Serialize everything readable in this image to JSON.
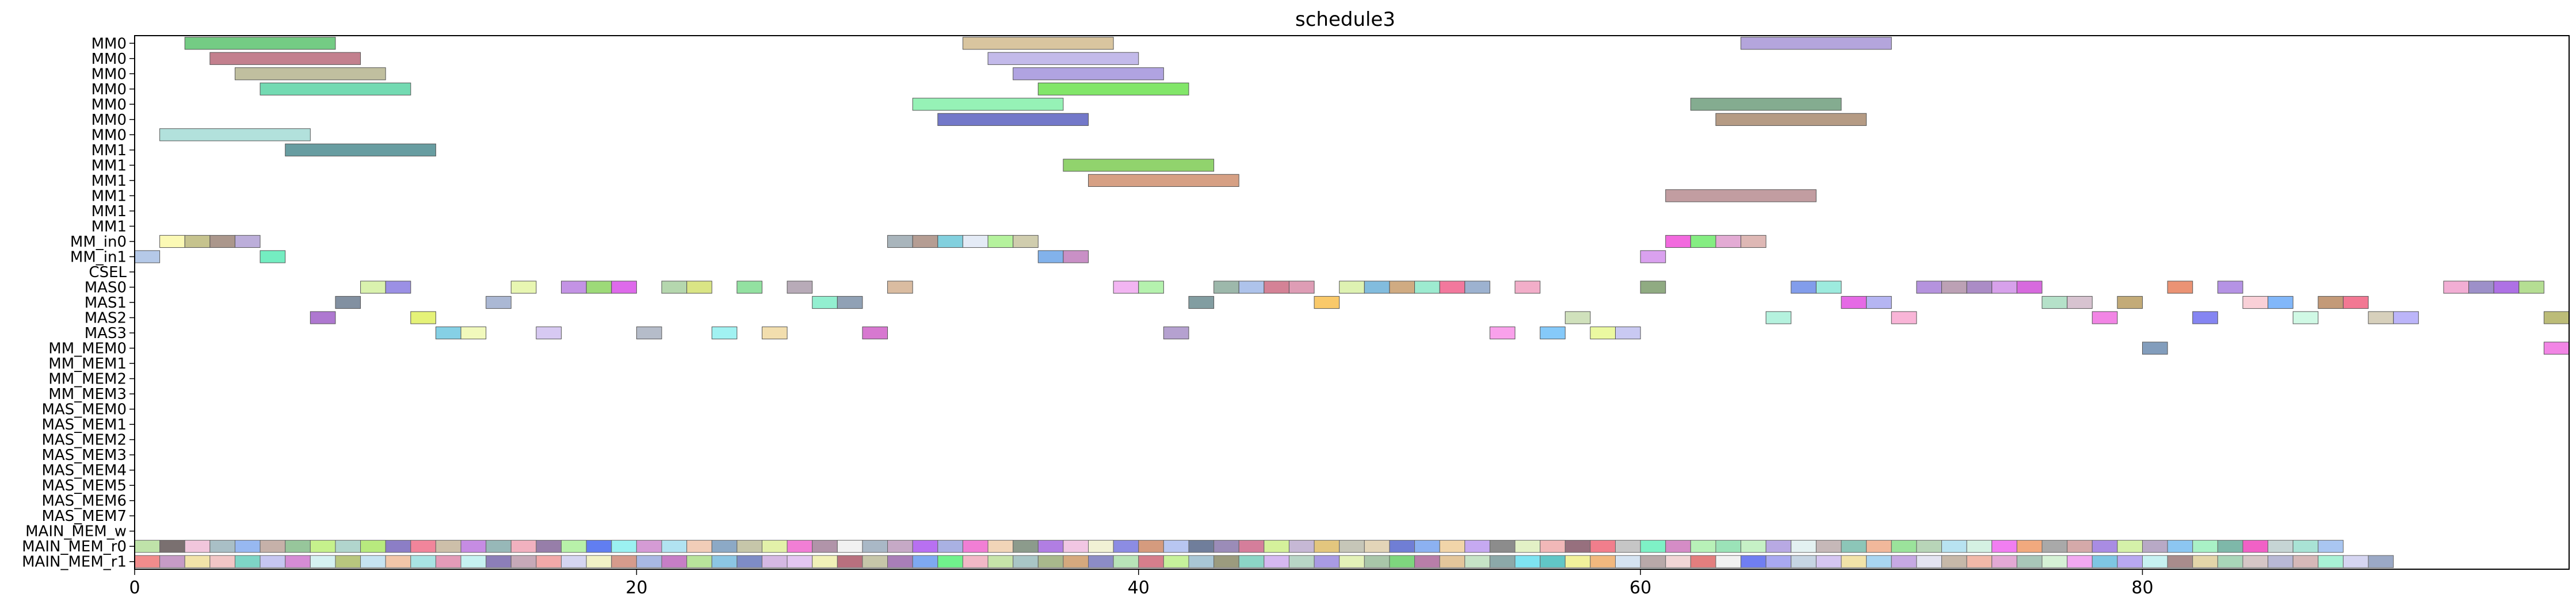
{
  "chart_data": {
    "type": "gantt",
    "title": "schedule3",
    "xlabel": "",
    "ylabel": "",
    "xlim": [
      0,
      97
    ],
    "grid": false,
    "legend": "none",
    "x_ticks": [
      0,
      20,
      40,
      60,
      80
    ],
    "rows": [
      "MM0",
      "MM0",
      "MM0",
      "MM0",
      "MM0",
      "MM0",
      "MM0",
      "MM1",
      "MM1",
      "MM1",
      "MM1",
      "MM1",
      "MM1",
      "MM_in0",
      "MM_in1",
      "CSEL",
      "MAS0",
      "MAS1",
      "MAS2",
      "MAS3",
      "MM_MEM0",
      "MM_MEM1",
      "MM_MEM2",
      "MM_MEM3",
      "MAS_MEM0",
      "MAS_MEM1",
      "MAS_MEM2",
      "MAS_MEM3",
      "MAS_MEM4",
      "MAS_MEM5",
      "MAS_MEM6",
      "MAS_MEM7",
      "MAIN_MEM_w",
      "MAIN_MEM_r0",
      "MAIN_MEM_r1"
    ],
    "tasks": [
      {
        "row": 0,
        "start": 2.0,
        "end": 8.0,
        "color": "#5cc36e"
      },
      {
        "row": 0,
        "start": 33.0,
        "end": 39.0,
        "color": "#d2bb8e"
      },
      {
        "row": 0,
        "start": 64.0,
        "end": 70.0,
        "color": "#a795d6"
      },
      {
        "row": 1,
        "start": 3.0,
        "end": 9.0,
        "color": "#b86a7a"
      },
      {
        "row": 1,
        "start": 34.0,
        "end": 40.0,
        "color": "#b9aee6"
      },
      {
        "row": 2,
        "start": 4.0,
        "end": 10.0,
        "color": "#b5b48e"
      },
      {
        "row": 2,
        "start": 35.0,
        "end": 41.0,
        "color": "#a293dc"
      },
      {
        "row": 3,
        "start": 5.0,
        "end": 11.0,
        "color": "#5bd3a5"
      },
      {
        "row": 3,
        "start": 36.0,
        "end": 42.0,
        "color": "#6ce24f"
      },
      {
        "row": 4,
        "start": 31.0,
        "end": 37.0,
        "color": "#84f0a9"
      },
      {
        "row": 4,
        "start": 62.0,
        "end": 68.0,
        "color": "#6e9d7c"
      },
      {
        "row": 5,
        "start": 32.0,
        "end": 38.0,
        "color": "#5a60c0"
      },
      {
        "row": 5,
        "start": 63.0,
        "end": 69.0,
        "color": "#a88a6e"
      },
      {
        "row": 6,
        "start": 1.0,
        "end": 7.0,
        "color": "#a4dcd6"
      },
      {
        "row": 7,
        "start": 6.0,
        "end": 12.0,
        "color": "#4d8c90"
      },
      {
        "row": 8,
        "start": 37.0,
        "end": 43.0,
        "color": "#7ecb54"
      },
      {
        "row": 9,
        "start": 38.0,
        "end": 44.0,
        "color": "#cf8f6e"
      },
      {
        "row": 10,
        "start": 61.0,
        "end": 67.0,
        "color": "#b78c90"
      },
      {
        "row": 13,
        "start": 1.0,
        "end": 2.0,
        "color": "#faf8a8"
      },
      {
        "row": 13,
        "start": 2.0,
        "end": 3.0,
        "color": "#bcb87a"
      },
      {
        "row": 13,
        "start": 3.0,
        "end": 4.0,
        "color": "#9c8578"
      },
      {
        "row": 13,
        "start": 4.0,
        "end": 5.0,
        "color": "#b0a0d4"
      },
      {
        "row": 13,
        "start": 30.0,
        "end": 31.0,
        "color": "#9aa8b0"
      },
      {
        "row": 13,
        "start": 31.0,
        "end": 32.0,
        "color": "#a88c80"
      },
      {
        "row": 13,
        "start": 32.0,
        "end": 33.0,
        "color": "#6cc8d8"
      },
      {
        "row": 13,
        "start": 33.0,
        "end": 34.0,
        "color": "#dfe7f4"
      },
      {
        "row": 13,
        "start": 34.0,
        "end": 35.0,
        "color": "#a8f08c"
      },
      {
        "row": 13,
        "start": 35.0,
        "end": 36.0,
        "color": "#c8c4a0"
      },
      {
        "row": 13,
        "start": 61.0,
        "end": 62.0,
        "color": "#f050d8"
      },
      {
        "row": 13,
        "start": 62.0,
        "end": 63.0,
        "color": "#70ea6c"
      },
      {
        "row": 13,
        "start": 63.0,
        "end": 64.0,
        "color": "#de9ccc"
      },
      {
        "row": 13,
        "start": 64.0,
        "end": 65.0,
        "color": "#d8aca8"
      },
      {
        "row": 14,
        "start": 0.0,
        "end": 1.0,
        "color": "#a8c0e4"
      },
      {
        "row": 14,
        "start": 5.0,
        "end": 6.0,
        "color": "#5ceab6"
      },
      {
        "row": 14,
        "start": 36.0,
        "end": 37.0,
        "color": "#6ca4e8"
      },
      {
        "row": 14,
        "start": 37.0,
        "end": 38.0,
        "color": "#c07cbc"
      },
      {
        "row": 14,
        "start": 60.0,
        "end": 61.0,
        "color": "#d490ec"
      },
      {
        "row": 16,
        "start": 9.0,
        "end": 10.0,
        "color": "#d4f0a0"
      },
      {
        "row": 16,
        "start": 10.0,
        "end": 11.0,
        "color": "#8a7ce0"
      },
      {
        "row": 16,
        "start": 15.0,
        "end": 16.0,
        "color": "#e4f4a4"
      },
      {
        "row": 16,
        "start": 17.0,
        "end": 18.0,
        "color": "#b880e0"
      },
      {
        "row": 16,
        "start": 18.0,
        "end": 19.0,
        "color": "#8cd460"
      },
      {
        "row": 16,
        "start": 19.0,
        "end": 20.0,
        "color": "#d850e8"
      },
      {
        "row": 16,
        "start": 21.0,
        "end": 22.0,
        "color": "#a8d0a0"
      },
      {
        "row": 16,
        "start": 22.0,
        "end": 23.0,
        "color": "#d4e070"
      },
      {
        "row": 16,
        "start": 24.0,
        "end": 25.0,
        "color": "#80dc90"
      },
      {
        "row": 16,
        "start": 26.0,
        "end": 27.0,
        "color": "#ac9cac"
      },
      {
        "row": 16,
        "start": 30.0,
        "end": 31.0,
        "color": "#d4b090"
      },
      {
        "row": 16,
        "start": 39.0,
        "end": 40.0,
        "color": "#f0a8f0"
      },
      {
        "row": 16,
        "start": 40.0,
        "end": 41.0,
        "color": "#a8f0a0"
      },
      {
        "row": 16,
        "start": 43.0,
        "end": 44.0,
        "color": "#8cac9c"
      },
      {
        "row": 16,
        "start": 44.0,
        "end": 45.0,
        "color": "#a0b8e8"
      },
      {
        "row": 16,
        "start": 45.0,
        "end": 46.0,
        "color": "#cc6c84"
      },
      {
        "row": 16,
        "start": 46.0,
        "end": 47.0,
        "color": "#d88ca8"
      },
      {
        "row": 16,
        "start": 48.0,
        "end": 49.0,
        "color": "#d8f0a4"
      },
      {
        "row": 16,
        "start": 49.0,
        "end": 50.0,
        "color": "#6cb0d8"
      },
      {
        "row": 16,
        "start": 50.0,
        "end": 51.0,
        "color": "#c89c6c"
      },
      {
        "row": 16,
        "start": 51.0,
        "end": 52.0,
        "color": "#8ce8c8"
      },
      {
        "row": 16,
        "start": 52.0,
        "end": 53.0,
        "color": "#f0608c"
      },
      {
        "row": 16,
        "start": 53.0,
        "end": 54.0,
        "color": "#8ca4c8"
      },
      {
        "row": 16,
        "start": 55.0,
        "end": 56.0,
        "color": "#f0a0c0"
      },
      {
        "row": 16,
        "start": 60.0,
        "end": 61.0,
        "color": "#7c9c6c"
      },
      {
        "row": 16,
        "start": 66.0,
        "end": 67.0,
        "color": "#6c8ce8"
      },
      {
        "row": 16,
        "start": 67.0,
        "end": 68.0,
        "color": "#8ce8d8"
      },
      {
        "row": 16,
        "start": 71.0,
        "end": 72.0,
        "color": "#a880d8"
      },
      {
        "row": 16,
        "start": 72.0,
        "end": 73.0,
        "color": "#b090a8"
      },
      {
        "row": 16,
        "start": 73.0,
        "end": 74.0,
        "color": "#9c78bc"
      },
      {
        "row": 16,
        "start": 74.0,
        "end": 75.0,
        "color": "#d090e8"
      },
      {
        "row": 16,
        "start": 75.0,
        "end": 76.0,
        "color": "#d050d8"
      },
      {
        "row": 16,
        "start": 81.0,
        "end": 82.0,
        "color": "#e8805c"
      },
      {
        "row": 16,
        "start": 83.0,
        "end": 84.0,
        "color": "#a880e0"
      },
      {
        "row": 16,
        "start": 92.0,
        "end": 93.0,
        "color": "#f0a0cc"
      },
      {
        "row": 16,
        "start": 93.0,
        "end": 94.0,
        "color": "#8c7cc0"
      },
      {
        "row": 16,
        "start": 94.0,
        "end": 95.0,
        "color": "#a058e0"
      },
      {
        "row": 16,
        "start": 95.0,
        "end": 96.0,
        "color": "#a8d880"
      },
      {
        "row": 17,
        "start": 8.0,
        "end": 9.0,
        "color": "#6c7c90"
      },
      {
        "row": 17,
        "start": 14.0,
        "end": 15.0,
        "color": "#9caccc"
      },
      {
        "row": 17,
        "start": 27.0,
        "end": 28.0,
        "color": "#80ecc8"
      },
      {
        "row": 17,
        "start": 28.0,
        "end": 29.0,
        "color": "#7c90a8"
      },
      {
        "row": 17,
        "start": 42.0,
        "end": 43.0,
        "color": "#6c8c90"
      },
      {
        "row": 17,
        "start": 47.0,
        "end": 48.0,
        "color": "#f8c050"
      },
      {
        "row": 17,
        "start": 68.0,
        "end": 69.0,
        "color": "#e050e0"
      },
      {
        "row": 17,
        "start": 69.0,
        "end": 70.0,
        "color": "#a8a8f0"
      },
      {
        "row": 17,
        "start": 76.0,
        "end": 77.0,
        "color": "#a8dcc0"
      },
      {
        "row": 17,
        "start": 77.0,
        "end": 78.0,
        "color": "#d0b8c8"
      },
      {
        "row": 17,
        "start": 79.0,
        "end": 80.0,
        "color": "#b89c60"
      },
      {
        "row": 17,
        "start": 84.0,
        "end": 85.0,
        "color": "#f8c8d0"
      },
      {
        "row": 17,
        "start": 85.0,
        "end": 86.0,
        "color": "#6caaf8"
      },
      {
        "row": 17,
        "start": 87.0,
        "end": 88.0,
        "color": "#b88860"
      },
      {
        "row": 17,
        "start": 88.0,
        "end": 89.0,
        "color": "#f06080"
      },
      {
        "row": 18,
        "start": 7.0,
        "end": 8.0,
        "color": "#a060c8"
      },
      {
        "row": 18,
        "start": 11.0,
        "end": 12.0,
        "color": "#e0f060"
      },
      {
        "row": 18,
        "start": 57.0,
        "end": 58.0,
        "color": "#c8dcb0"
      },
      {
        "row": 18,
        "start": 65.0,
        "end": 66.0,
        "color": "#a8f0d8"
      },
      {
        "row": 18,
        "start": 70.0,
        "end": 71.0,
        "color": "#f8a8d0"
      },
      {
        "row": 18,
        "start": 78.0,
        "end": 79.0,
        "color": "#f070e0"
      },
      {
        "row": 18,
        "start": 82.0,
        "end": 83.0,
        "color": "#7070f0"
      },
      {
        "row": 18,
        "start": 86.0,
        "end": 87.0,
        "color": "#c8f8e0"
      },
      {
        "row": 18,
        "start": 89.0,
        "end": 90.0,
        "color": "#d0c8b0"
      },
      {
        "row": 18,
        "start": 90.0,
        "end": 91.0,
        "color": "#b0a8f8"
      },
      {
        "row": 18,
        "start": 96.0,
        "end": 97.0,
        "color": "#b0b060"
      },
      {
        "row": 19,
        "start": 12.0,
        "end": 13.0,
        "color": "#70c8e0"
      },
      {
        "row": 19,
        "start": 13.0,
        "end": 14.0,
        "color": "#eef8b0"
      },
      {
        "row": 19,
        "start": 16.0,
        "end": 17.0,
        "color": "#d0c0f0"
      },
      {
        "row": 19,
        "start": 20.0,
        "end": 21.0,
        "color": "#a8b0c0"
      },
      {
        "row": 19,
        "start": 23.0,
        "end": 24.0,
        "color": "#90f0f0"
      },
      {
        "row": 19,
        "start": 25.0,
        "end": 26.0,
        "color": "#f0d8a0"
      },
      {
        "row": 19,
        "start": 29.0,
        "end": 30.0,
        "color": "#d060c8"
      },
      {
        "row": 19,
        "start": 41.0,
        "end": 42.0,
        "color": "#a890c8"
      },
      {
        "row": 19,
        "start": 54.0,
        "end": 55.0,
        "color": "#f890e8"
      },
      {
        "row": 19,
        "start": 56.0,
        "end": 57.0,
        "color": "#70c0f8"
      },
      {
        "row": 19,
        "start": 58.0,
        "end": 59.0,
        "color": "#e8f890"
      },
      {
        "row": 19,
        "start": 59.0,
        "end": 60.0,
        "color": "#c0c0f0"
      },
      {
        "row": 20,
        "start": 80.0,
        "end": 81.0,
        "color": "#6c8cb0"
      },
      {
        "row": 20,
        "start": 96.0,
        "end": 97.0,
        "color": "#f070e0"
      }
    ],
    "main_mem_colors": {
      "w": [],
      "r0": [
        "#b8e0a0",
        "#6c6060",
        "#f0c0d8",
        "#a0b8c0",
        "#8cb0f0",
        "#c0a8a0",
        "#8cc090",
        "#c0f080",
        "#a8d0c8",
        "#b0e870",
        "#8070c0",
        "#f07890",
        "#c8b8a0",
        "#c080e0",
        "#8cb0b0",
        "#f0a8b8",
        "#8c70a0",
        "#b0f0a0",
        "#5070f0",
        "#90f0f0",
        "#d090d0",
        "#a8e0f0",
        "#f0c8b0",
        "#80a0c0",
        "#c0c0a0",
        "#e0f0a0",
        "#f070d0",
        "#a888a0",
        "#f0f0f0",
        "#a0b0c0",
        "#c0a0c0",
        "#b060f0",
        "#a0a8e0",
        "#f070d0",
        "#f0d0b0",
        "#809080",
        "#a870e0",
        "#f0c0e0",
        "#f0f0d0",
        "#8080e0",
        "#d09070",
        "#b0c0f0",
        "#607090",
        "#9080b0",
        "#d07090",
        "#d0f090",
        "#c0b0d0",
        "#e0c070",
        "#c0c0b0",
        "#e0d0b0",
        "#6070d0",
        "#80a8f0",
        "#f0d0a0",
        "#c0a0f0",
        "#808080",
        "#e0f0c0",
        "#f0b0b0",
        "#8c6070",
        "#f07080",
        "#c0c0c0",
        "#70f0c0",
        "#d080c0",
        "#b0f0b0",
        "#90e0b0",
        "#c0f0c0",
        "#b0a0e0",
        "#e0f0f0",
        "#c0b0b0",
        "#80c0b0",
        "#f0b090",
        "#90e090",
        "#b0d0b0",
        "#b0e0f0",
        "#d0f0e0",
        "#f070f0",
        "#f0a070",
        "#a0a0a0",
        "#d0a0a0",
        "#a080e0",
        "#d0f0a0",
        "#b0a0c0",
        "#80c0f0",
        "#a0f0c0",
        "#70b0a0",
        "#f050c0",
        "#c0d0d0",
        "#a0e0d0",
        "#a0c0f0"
      ],
      "r1": [
        "#f08080",
        "#c090c0",
        "#f0e0a0",
        "#f0c0c0",
        "#70d0c0",
        "#c0c0f0",
        "#d080d0",
        "#d0f0f0",
        "#b0c070",
        "#c0e0f0",
        "#f0c0a0",
        "#a0e0e0",
        "#e090b0",
        "#c0f0f0",
        "#8070b0",
        "#c0a0b0",
        "#f0a0a0",
        "#d0d0f0",
        "#f0f0c0",
        "#d09080",
        "#a0b0e0",
        "#c070c0",
        "#b0e090",
        "#80c0e0",
        "#7080c0",
        "#d0b0e0",
        "#e0c0f0",
        "#f0f0b0",
        "#b06070",
        "#c0c0a0",
        "#a070b0",
        "#70a0f0",
        "#60f080",
        "#f0b0c0",
        "#c0e0a0",
        "#a0c0c0",
        "#a0b080",
        "#d0a070",
        "#8080c0",
        "#b0e0b0",
        "#d07080",
        "#c0f090",
        "#a0c0d0",
        "#909070",
        "#80d0c0",
        "#d0b0f0",
        "#b0d0c0",
        "#a090e0",
        "#e0f0b0",
        "#a0c0a0",
        "#70d070",
        "#b070a0",
        "#e0c090",
        "#c0e0c0",
        "#80a0a0",
        "#70e0f0",
        "#50c0c0",
        "#f0f090",
        "#f0b070",
        "#d0e0f0",
        "#b0a0a0",
        "#f0d0d0",
        "#e07070",
        "#f0f0f0",
        "#6070f0",
        "#a0a0f0",
        "#c0d0e0",
        "#d0c0f0",
        "#f0e0a0",
        "#a0d0f0",
        "#c0a0e0",
        "#e0e0f0",
        "#c0b0a0",
        "#f0b0a0",
        "#e0a0d0",
        "#a0c0b0",
        "#d0f0d0",
        "#f0a0f0",
        "#70c0e0",
        "#b0a0f0",
        "#c0f0f0",
        "#a08080",
        "#e0d0a0",
        "#a0d0b0",
        "#d0c0c0",
        "#b0b0d0",
        "#d0b0b0",
        "#a0f0d0",
        "#d0d0f0",
        "#90a0c0"
      ]
    }
  }
}
